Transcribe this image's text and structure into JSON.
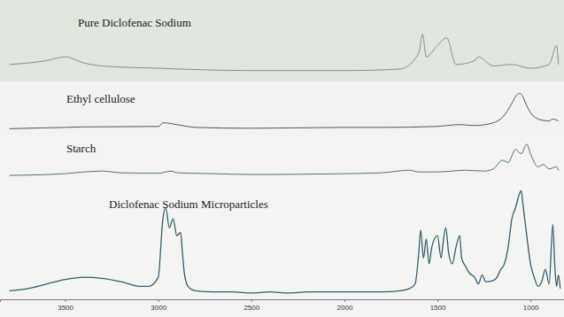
{
  "chart_data": [
    {
      "type": "line",
      "title": "Pure Diclofenac Sodium",
      "color": "#8a948c",
      "x": [
        3800,
        3600,
        3500,
        3400,
        3300,
        3000,
        2500,
        2000,
        1700,
        1600,
        1580,
        1560,
        1500,
        1450,
        1400,
        1300,
        1280,
        1200,
        1100,
        1000,
        900,
        860,
        850
      ],
      "values": [
        20,
        25,
        30,
        22,
        18,
        15,
        12,
        12,
        14,
        35,
        60,
        30,
        45,
        55,
        20,
        25,
        30,
        18,
        20,
        15,
        20,
        45,
        20
      ],
      "xlim": [
        3850,
        820
      ],
      "ylim": [
        0,
        100
      ],
      "tick_labels": false
    },
    {
      "type": "line",
      "title": "Ethyl cellulose",
      "color": "#555555",
      "x": [
        3800,
        3500,
        3400,
        3000,
        2970,
        2900,
        2800,
        2500,
        2000,
        1800,
        1500,
        1450,
        1380,
        1300,
        1200,
        1150,
        1100,
        1080,
        1060,
        1050,
        1020,
        1000,
        950,
        900,
        880,
        850
      ],
      "values": [
        5,
        8,
        9,
        10,
        18,
        14,
        8,
        6,
        8,
        8,
        10,
        12,
        14,
        12,
        18,
        30,
        60,
        75,
        82,
        80,
        55,
        40,
        25,
        22,
        26,
        22
      ],
      "xlim": [
        3850,
        820
      ],
      "ylim": [
        0,
        100
      ],
      "tick_labels": false
    },
    {
      "type": "line",
      "title": "Starch",
      "color": "#4f6f78",
      "x": [
        3800,
        3500,
        3400,
        3300,
        3200,
        3000,
        2930,
        2900,
        2700,
        2500,
        2000,
        1800,
        1650,
        1600,
        1500,
        1420,
        1350,
        1250,
        1200,
        1150,
        1120,
        1080,
        1050,
        1020,
        1000,
        960,
        930,
        900,
        860,
        850
      ],
      "values": [
        10,
        14,
        18,
        20,
        16,
        15,
        20,
        16,
        14,
        12,
        14,
        16,
        22,
        18,
        18,
        20,
        22,
        20,
        25,
        45,
        40,
        70,
        60,
        82,
        60,
        30,
        35,
        25,
        30,
        22
      ],
      "xlim": [
        3850,
        820
      ],
      "ylim": [
        0,
        100
      ],
      "tick_labels": false
    },
    {
      "type": "line",
      "title": "Diclofenac Sodium Microparticles",
      "color": "#2f5f6c",
      "x": [
        3800,
        3700,
        3600,
        3500,
        3400,
        3300,
        3200,
        3100,
        3050,
        3000,
        2975,
        2960,
        2940,
        2920,
        2900,
        2880,
        2870,
        2860,
        2840,
        2800,
        2700,
        2600,
        2500,
        2400,
        2300,
        2200,
        2100,
        2000,
        1900,
        1800,
        1700,
        1650,
        1620,
        1600,
        1590,
        1575,
        1560,
        1545,
        1530,
        1500,
        1480,
        1470,
        1455,
        1440,
        1420,
        1400,
        1380,
        1370,
        1350,
        1330,
        1300,
        1280,
        1260,
        1240,
        1200,
        1180,
        1160,
        1140,
        1120,
        1100,
        1080,
        1060,
        1050,
        1040,
        1020,
        1000,
        980,
        960,
        940,
        920,
        900,
        880,
        870,
        860,
        850,
        840
      ],
      "values": [
        6,
        8,
        12,
        16,
        18,
        17,
        14,
        10,
        10,
        18,
        70,
        80,
        62,
        70,
        55,
        58,
        40,
        22,
        10,
        6,
        5,
        5,
        4,
        5,
        4,
        5,
        5,
        5,
        5,
        5,
        6,
        8,
        12,
        40,
        60,
        35,
        52,
        30,
        45,
        55,
        35,
        48,
        62,
        40,
        30,
        45,
        55,
        35,
        28,
        22,
        18,
        12,
        20,
        14,
        15,
        18,
        25,
        30,
        45,
        70,
        80,
        92,
        95,
        82,
        55,
        30,
        18,
        10,
        14,
        25,
        12,
        65,
        30,
        10,
        20,
        8
      ],
      "xlim": [
        3850,
        820
      ],
      "ylim": [
        0,
        100
      ],
      "xticks": [
        3500,
        3000,
        2500,
        2000,
        1500,
        1000
      ],
      "tick_labels": "x"
    }
  ]
}
